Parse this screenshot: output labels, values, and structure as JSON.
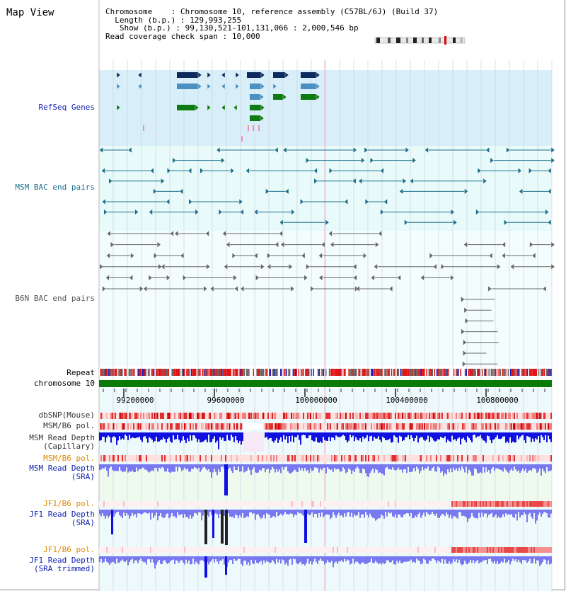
{
  "title": "Map View",
  "info": {
    "chromosome_key": "Chromosome",
    "chromosome_val": "Chromosome 10, reference assembly (C57BL/6J) (Build 37)",
    "length_key": "Length (b.p.)",
    "length_val": "129,993,255",
    "show_key": "Show (b.p.)",
    "show_val": "99,130,521-101,131,066 : 2,000,546 bp",
    "coverage_key": "Read coverage check span",
    "coverage_val": "10,000"
  },
  "tracks": {
    "refseq": "RefSeq Genes",
    "msm_bac": "MSM BAC end pairs",
    "b6n_bac": "B6N BAC end pairs",
    "repeat": "Repeat",
    "chromosome": "chromosome 10",
    "dbsnp": "dbSNP(Mouse)",
    "msm_b6_pol_1": "MSM/B6 pol.",
    "msm_depth_cap": "MSM Read Depth\n(Capillary)",
    "msm_b6_pol_2": "MSM/B6 pol.",
    "msm_depth_sra": "MSM Read Depth\n(SRA)",
    "jf1_b6_pol_1": "JF1/B6 pol.",
    "jf1_depth_sra": "JF1 Read Depth\n(SRA)",
    "jf1_b6_pol_2": "JF1/B6 pol.",
    "jf1_depth_trim": "JF1 Read Depth\n(SRA trimmed)"
  },
  "axis": {
    "ticks": [
      "99200000",
      "99600000",
      "100000000",
      "100400000",
      "100800000"
    ]
  },
  "colors": {
    "refseq_bg": "#d8eef8",
    "msm_bg": "#e8fafa",
    "b6n_bg": "#f4fdfd",
    "gene_dark": "#0d2b5e",
    "gene_mid": "#4a90c0",
    "gene_green": "#0d7a12",
    "msm_pair": "#1b6f8a",
    "b6n_pair": "#666666",
    "chromosome_bar": "#0a7a0a",
    "depth_blue": "#1010e0",
    "depth_lavender": "#7878f0",
    "pol_red": "#e83030"
  }
}
